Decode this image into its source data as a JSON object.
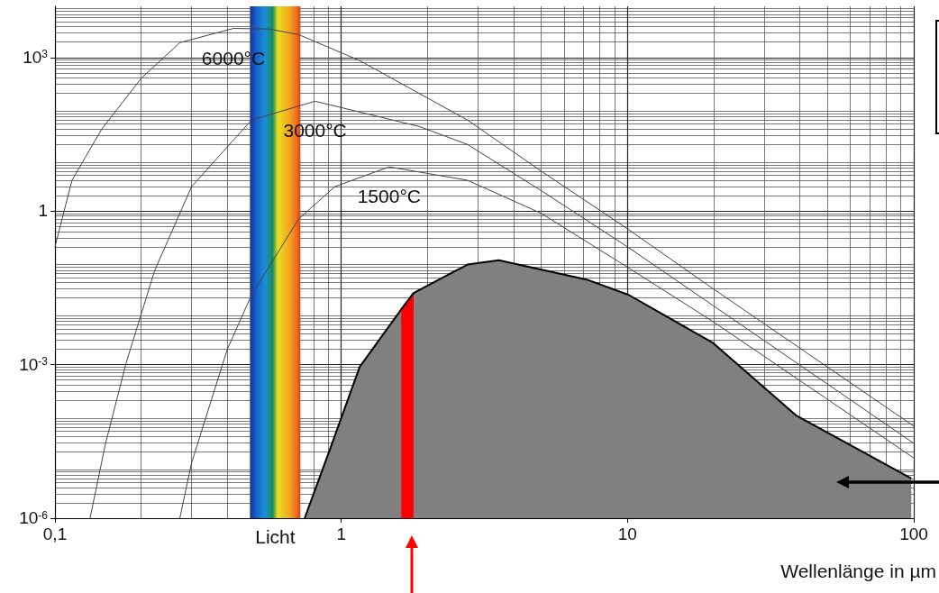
{
  "chart_data": {
    "type": "line",
    "xlabel": "Wellenlänge in µm",
    "xlim": [
      0.1,
      100
    ],
    "ylim": [
      1e-06,
      10000
    ],
    "xticks": [
      {
        "value": 0.1,
        "label": "0,1"
      },
      1,
      10,
      100
    ],
    "yticks": [
      {
        "value": 1e-06,
        "label": "10$^{-6}$"
      },
      {
        "value": 0.001,
        "label": "10$^{-3}$"
      },
      1,
      {
        "value": 1000,
        "label": "10$^{3}$"
      }
    ],
    "log": "xy",
    "grid": true,
    "marker": "none",
    "legend": false,
    "bands": [
      {
        "axis": "x",
        "from": 0.48,
        "to": 0.72,
        "label": "Licht"
      }
    ],
    "series": [
      {
        "name": "6000°C",
        "color": "#444444",
        "x": [
          0.1,
          0.1147,
          0.1457,
          0.2,
          0.273,
          0.42,
          0.56,
          0.71,
          1.16,
          2.76,
          5,
          10,
          19.8,
          100
        ],
        "values": [
          0.2,
          4,
          40,
          390,
          1950,
          3700,
          3600,
          2800,
          870,
          60,
          6,
          0.45,
          0.031,
          6.3e-05
        ]
      },
      {
        "name": "3000°C",
        "color": "#444444",
        "x": [
          0.1326,
          0.15,
          0.177,
          0.223,
          0.3,
          0.486,
          0.81,
          1.87,
          2.76,
          5,
          10,
          20,
          100
        ],
        "values": [
          1e-06,
          2.8e-05,
          0.00105,
          0.069,
          3,
          60,
          140,
          45,
          20,
          2.5,
          0.2,
          0.014,
          2.9e-05
        ]
      },
      {
        "name": "1500°C",
        "color": "#444444",
        "x": [
          0.273,
          0.3,
          0.4,
          0.486,
          0.71,
          0.95,
          1.47,
          2.76,
          5,
          10,
          20,
          100
        ],
        "values": [
          1e-06,
          1.2e-05,
          0.002,
          0.023,
          0.7,
          3,
          7.3,
          4,
          0.9,
          0.08,
          0.0068,
          1.5e-05
        ]
      },
      {
        "type": "area",
        "color": "#808080",
        "x": [
          0.745,
          0.91,
          1.16,
          1.62,
          1.79,
          2.76,
          3.55,
          7.2,
          10.1,
          19.8,
          39,
          98
        ],
        "values": [
          1e-06,
          2.1e-05,
          0.0009,
          0.012,
          0.025,
          0.09,
          0.11,
          0.046,
          0.023,
          0.0027,
          0.0001,
          6e-06
        ]
      },
      {
        "type": "area",
        "color": "#ff0000",
        "x": [
          1.62,
          1.79
        ],
        "values": [
          0.012,
          0.025
        ]
      }
    ]
  }
}
